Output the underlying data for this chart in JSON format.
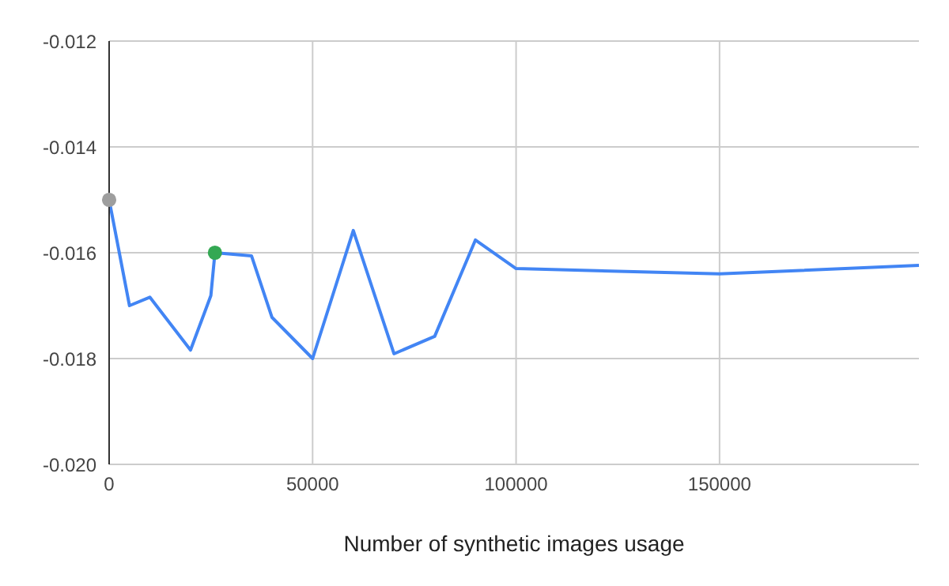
{
  "chart_data": {
    "type": "line",
    "xlabel": "Number of synthetic images usage",
    "xlim": [
      0,
      199000
    ],
    "xticks": [
      0,
      50000,
      100000,
      150000
    ],
    "ylim": [
      -0.02,
      -0.012
    ],
    "yticks": [
      {
        "value": -0.02,
        "label": "-0.020"
      },
      {
        "value": -0.018,
        "label": "-0.018"
      },
      {
        "value": -0.016,
        "label": "-0.016"
      },
      {
        "value": -0.014,
        "label": "-0.014"
      },
      {
        "value": -0.012,
        "label": "-0.012"
      }
    ],
    "grid": true,
    "legend": false,
    "series": [
      {
        "color": "#4285f4",
        "marker": "none",
        "x": [
          0,
          5000,
          10000,
          20000,
          25000,
          26000,
          35000,
          40000,
          50000,
          60000,
          70000,
          80000,
          90000,
          100000,
          150000,
          199000
        ],
        "values": [
          -0.015,
          -0.017,
          -0.01684,
          -0.01784,
          -0.01681,
          -0.016,
          -0.01606,
          -0.01722,
          -0.018,
          -0.01558,
          -0.01791,
          -0.01758,
          -0.01576,
          -0.0163,
          -0.0164,
          -0.01624
        ]
      },
      {
        "type": "scatter",
        "colors": [
          "#9e9e9e",
          "#34a853"
        ],
        "marker": "circle",
        "x": [
          0,
          26000
        ],
        "values": [
          -0.015,
          -0.016
        ]
      }
    ]
  }
}
